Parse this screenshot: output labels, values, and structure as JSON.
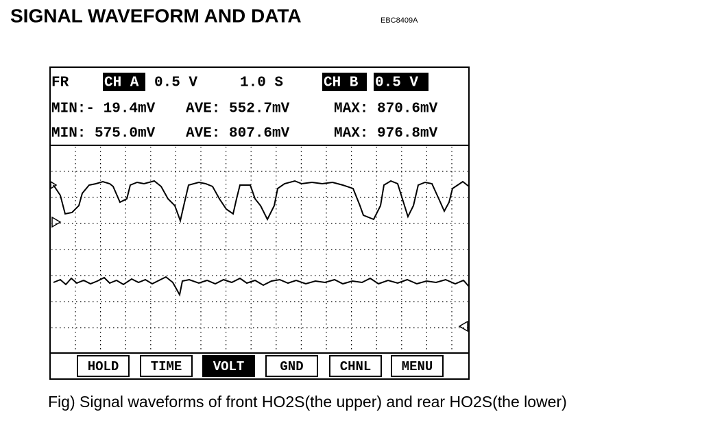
{
  "header": {
    "title": "SIGNAL WAVEFORM AND DATA",
    "code": "EBC8409A"
  },
  "scope": {
    "status": [
      "FR",
      "CH A",
      "0.5 V",
      "1.0 S",
      "CH B",
      "0.5 V"
    ],
    "rows": [
      [
        "MIN:- 19.4mV",
        "AVE: 552.7mV",
        "MAX: 870.6mV"
      ],
      [
        "MIN: 575.0mV",
        "AVE: 807.6mV",
        "MAX: 976.8mV"
      ]
    ],
    "buttons": [
      "HOLD",
      "TIME",
      "VOLT",
      "GND",
      "CHNL",
      "MENU"
    ]
  },
  "caption": "Fig) Signal waveforms of front HO2S(the upper) and rear HO2S(the lower)"
}
